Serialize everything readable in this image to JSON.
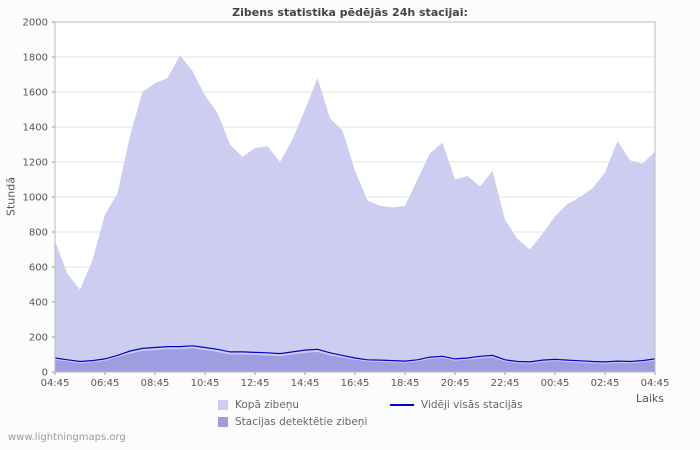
{
  "title": "Zibens statistika pēdējās 24h stacijai:",
  "watermark": "www.lightningmaps.org",
  "axes": {
    "y_label": "Stundā",
    "x_label": "Laiks"
  },
  "legend": [
    {
      "label": "Kopā zibeņu",
      "kind": "area",
      "color": "#cdcdf2"
    },
    {
      "label": "Vidēji visās stacijās",
      "kind": "line",
      "color": "#0000cc"
    },
    {
      "label": "Stacijas detektētie zibeņi",
      "kind": "area",
      "color": "#9d9de0"
    }
  ],
  "chart_data": {
    "type": "area",
    "title": "Zibens statistika pēdējās 24h stacijai:",
    "xlabel": "Laiks",
    "ylabel": "Stundā",
    "ylim": [
      0,
      2000
    ],
    "y_ticks": [
      0,
      200,
      400,
      600,
      800,
      1000,
      1200,
      1400,
      1600,
      1800,
      2000
    ],
    "grid": "horizontal",
    "legend_position": "bottom",
    "x_tick_every": 4,
    "colors": {
      "plot_bg": "#ffffff",
      "grid": "#e3e3e3",
      "axis": "#999999",
      "border": "#bdbdbd"
    },
    "x": [
      "04:45",
      "05:15",
      "05:45",
      "06:15",
      "06:45",
      "07:15",
      "07:45",
      "08:15",
      "08:45",
      "09:15",
      "09:45",
      "10:15",
      "10:45",
      "11:15",
      "11:45",
      "12:15",
      "12:45",
      "13:15",
      "13:45",
      "14:15",
      "14:45",
      "15:15",
      "15:45",
      "16:15",
      "16:45",
      "17:15",
      "17:45",
      "18:15",
      "18:45",
      "19:15",
      "19:45",
      "20:15",
      "20:45",
      "21:15",
      "21:45",
      "22:15",
      "22:45",
      "23:15",
      "23:45",
      "00:15",
      "00:45",
      "01:15",
      "01:45",
      "02:15",
      "02:45",
      "03:15",
      "03:45",
      "04:15",
      "04:45"
    ],
    "series": [
      {
        "name": "Kopā zibeņu",
        "kind": "area",
        "color": "#cdcdf2",
        "values": [
          750,
          560,
          470,
          640,
          900,
          1020,
          1350,
          1600,
          1650,
          1680,
          1810,
          1720,
          1580,
          1480,
          1300,
          1230,
          1280,
          1290,
          1200,
          1330,
          1500,
          1680,
          1450,
          1380,
          1150,
          980,
          950,
          940,
          950,
          1100,
          1250,
          1310,
          1100,
          1120,
          1060,
          1150,
          870,
          760,
          700,
          790,
          890,
          960,
          1000,
          1050,
          1140,
          1320,
          1210,
          1190,
          1260
        ]
      },
      {
        "name": "Stacijas detektētie zibeņi",
        "kind": "area",
        "color": "#9d9de0",
        "values": [
          70,
          60,
          50,
          55,
          65,
          85,
          105,
          120,
          125,
          130,
          130,
          135,
          125,
          115,
          100,
          100,
          98,
          95,
          90,
          100,
          110,
          115,
          95,
          82,
          70,
          60,
          58,
          55,
          52,
          60,
          75,
          80,
          65,
          70,
          78,
          82,
          60,
          50,
          48,
          58,
          62,
          58,
          54,
          50,
          48,
          52,
          50,
          55,
          65
        ]
      },
      {
        "name": "Vidēji visās stacijās",
        "kind": "line",
        "color": "#0000cc",
        "values": [
          80,
          70,
          60,
          65,
          75,
          95,
          120,
          135,
          140,
          145,
          145,
          150,
          140,
          130,
          115,
          115,
          112,
          110,
          105,
          115,
          125,
          130,
          110,
          95,
          80,
          70,
          68,
          65,
          62,
          70,
          85,
          90,
          75,
          80,
          90,
          95,
          70,
          60,
          58,
          68,
          72,
          68,
          64,
          60,
          58,
          62,
          60,
          65,
          75
        ]
      }
    ]
  }
}
